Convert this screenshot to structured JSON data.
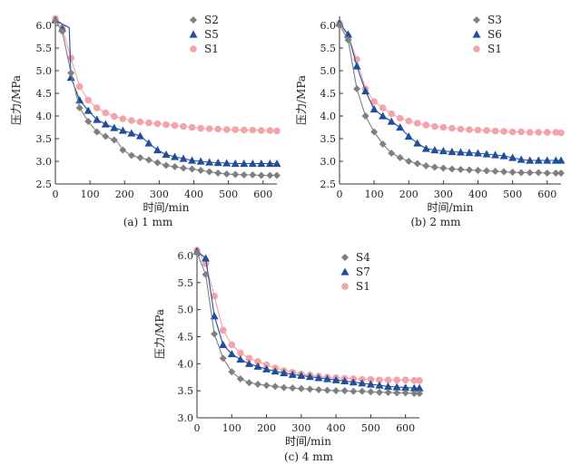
{
  "chart_data": [
    {
      "type": "line",
      "caption": "(a) 1 mm",
      "xlabel": "时间/min",
      "ylabel": "压力/MPa",
      "xlim": [
        0,
        640
      ],
      "ylim": [
        2.5,
        6.2
      ],
      "xticks": [
        0,
        100,
        200,
        300,
        400,
        500,
        600
      ],
      "yticks": [
        2.5,
        3.0,
        3.5,
        4.0,
        4.5,
        5.0,
        5.5,
        6.0
      ],
      "legend_position": "top-right",
      "series": [
        {
          "name": "S2",
          "marker": "diamond",
          "color": "#7f7f7f",
          "x": [
            0,
            20,
            45,
            70,
            95,
            120,
            145,
            170,
            195,
            220,
            245,
            270,
            295,
            320,
            345,
            370,
            395,
            420,
            445,
            470,
            495,
            520,
            545,
            570,
            595,
            620,
            640
          ],
          "y": [
            6.1,
            5.87,
            4.95,
            4.18,
            3.88,
            3.65,
            3.55,
            3.47,
            3.25,
            3.13,
            3.08,
            3.03,
            2.97,
            2.91,
            2.88,
            2.85,
            2.83,
            2.8,
            2.77,
            2.74,
            2.72,
            2.71,
            2.7,
            2.7,
            2.69,
            2.69,
            2.69
          ],
          "line": {
            "x": [
              0,
              20,
              45,
              70,
              95,
              120,
              145,
              170,
              180,
              195,
              220,
              245,
              270,
              295,
              320,
              345,
              370,
              395,
              420,
              445,
              470,
              495,
              520,
              545,
              570,
              595,
              620,
              640
            ],
            "y": [
              6.1,
              5.87,
              4.95,
              4.18,
              3.88,
              3.65,
              3.55,
              3.47,
              3.42,
              3.25,
              3.13,
              3.08,
              3.03,
              2.97,
              2.91,
              2.88,
              2.85,
              2.83,
              2.8,
              2.77,
              2.74,
              2.72,
              2.71,
              2.7,
              2.7,
              2.69,
              2.69,
              2.69
            ]
          }
        },
        {
          "name": "S5",
          "marker": "triangle",
          "color": "#1f4e9c",
          "x": [
            0,
            20,
            45,
            70,
            95,
            120,
            145,
            170,
            195,
            220,
            245,
            270,
            295,
            320,
            345,
            370,
            395,
            420,
            445,
            470,
            495,
            520,
            545,
            570,
            595,
            620,
            640
          ],
          "y": [
            6.12,
            5.93,
            4.85,
            4.35,
            4.12,
            3.92,
            3.82,
            3.74,
            3.68,
            3.62,
            3.56,
            3.4,
            3.25,
            3.15,
            3.1,
            3.06,
            3.02,
            3.0,
            2.98,
            2.97,
            2.96,
            2.95,
            2.95,
            2.95,
            2.95,
            2.95,
            2.95
          ],
          "line": {
            "x": [
              0,
              15,
              40,
              45,
              70,
              95,
              120,
              145,
              170,
              195,
              220,
              245,
              270,
              295,
              320,
              345,
              370,
              395,
              420,
              445,
              470,
              495,
              520,
              545,
              570,
              595,
              620,
              640
            ],
            "y": [
              6.12,
              6.05,
              5.95,
              4.85,
              4.35,
              4.12,
              3.92,
              3.82,
              3.74,
              3.68,
              3.62,
              3.56,
              3.4,
              3.25,
              3.15,
              3.1,
              3.06,
              3.02,
              3.0,
              2.98,
              2.97,
              2.96,
              2.95,
              2.95,
              2.95,
              2.95,
              2.95,
              2.95
            ]
          }
        },
        {
          "name": "S1",
          "marker": "circle",
          "color": "#f4a3a8",
          "x": [
            0,
            20,
            45,
            70,
            95,
            120,
            145,
            170,
            195,
            220,
            245,
            270,
            295,
            320,
            345,
            370,
            395,
            420,
            445,
            470,
            495,
            520,
            545,
            570,
            595,
            620,
            640
          ],
          "y": [
            6.15,
            5.95,
            5.28,
            4.65,
            4.35,
            4.18,
            4.07,
            3.99,
            3.94,
            3.9,
            3.87,
            3.85,
            3.83,
            3.81,
            3.79,
            3.77,
            3.75,
            3.73,
            3.72,
            3.71,
            3.7,
            3.7,
            3.69,
            3.69,
            3.68,
            3.68,
            3.67
          ]
        }
      ]
    },
    {
      "type": "line",
      "caption": "(b) 2 mm",
      "xlabel": "时间/min",
      "ylabel": "压力/MPa",
      "xlim": [
        0,
        640
      ],
      "ylim": [
        2.5,
        6.2
      ],
      "xticks": [
        0,
        100,
        200,
        300,
        400,
        500,
        600
      ],
      "yticks": [
        2.5,
        3.0,
        3.5,
        4.0,
        4.5,
        5.0,
        5.5,
        6.0
      ],
      "legend_position": "top-right",
      "series": [
        {
          "name": "S3",
          "marker": "diamond",
          "color": "#7f7f7f",
          "x": [
            0,
            25,
            50,
            75,
            100,
            125,
            150,
            175,
            200,
            225,
            250,
            275,
            300,
            325,
            350,
            375,
            400,
            425,
            450,
            475,
            500,
            525,
            550,
            575,
            600,
            625,
            640
          ],
          "y": [
            6.0,
            5.68,
            4.6,
            4.0,
            3.65,
            3.38,
            3.18,
            3.08,
            3.0,
            2.95,
            2.9,
            2.87,
            2.85,
            2.83,
            2.82,
            2.81,
            2.8,
            2.79,
            2.78,
            2.77,
            2.76,
            2.75,
            2.75,
            2.75,
            2.74,
            2.74,
            2.74
          ]
        },
        {
          "name": "S6",
          "marker": "triangle",
          "color": "#1f4e9c",
          "x": [
            0,
            25,
            50,
            75,
            100,
            125,
            150,
            175,
            200,
            225,
            250,
            275,
            300,
            325,
            350,
            375,
            400,
            425,
            450,
            475,
            500,
            525,
            550,
            575,
            600,
            625,
            640
          ],
          "y": [
            6.05,
            5.8,
            5.1,
            4.55,
            4.15,
            4.0,
            3.88,
            3.75,
            3.55,
            3.4,
            3.28,
            3.25,
            3.23,
            3.21,
            3.2,
            3.19,
            3.18,
            3.16,
            3.14,
            3.12,
            3.08,
            3.04,
            3.02,
            3.02,
            3.02,
            3.02,
            3.02
          ]
        },
        {
          "name": "S1",
          "marker": "circle",
          "color": "#f4a3a8",
          "x": [
            0,
            25,
            50,
            75,
            100,
            125,
            150,
            175,
            200,
            225,
            250,
            275,
            300,
            325,
            350,
            375,
            400,
            425,
            450,
            475,
            500,
            525,
            550,
            575,
            600,
            625,
            640
          ],
          "y": [
            6.05,
            5.75,
            5.25,
            4.6,
            4.32,
            4.18,
            4.05,
            3.95,
            3.89,
            3.84,
            3.8,
            3.77,
            3.75,
            3.73,
            3.71,
            3.7,
            3.69,
            3.68,
            3.67,
            3.66,
            3.65,
            3.65,
            3.64,
            3.64,
            3.64,
            3.64,
            3.63
          ]
        }
      ]
    },
    {
      "type": "line",
      "caption": "(c) 4 mm",
      "xlabel": "时间/min",
      "ylabel": "压力/MPa",
      "xlim": [
        0,
        640
      ],
      "ylim": [
        3.0,
        6.1
      ],
      "xticks": [
        0,
        100,
        200,
        300,
        400,
        500,
        600
      ],
      "yticks": [
        3.0,
        3.5,
        4.0,
        4.5,
        5.0,
        5.5,
        6.0
      ],
      "legend_position": "top-right",
      "series": [
        {
          "name": "S4",
          "marker": "diamond",
          "color": "#7f7f7f",
          "x": [
            0,
            25,
            50,
            75,
            100,
            125,
            150,
            175,
            200,
            225,
            250,
            275,
            300,
            325,
            350,
            375,
            400,
            425,
            450,
            475,
            500,
            525,
            550,
            575,
            600,
            625,
            640
          ],
          "y": [
            6.05,
            5.65,
            4.55,
            4.1,
            3.85,
            3.72,
            3.65,
            3.62,
            3.6,
            3.58,
            3.56,
            3.55,
            3.54,
            3.53,
            3.52,
            3.51,
            3.5,
            3.5,
            3.49,
            3.49,
            3.48,
            3.47,
            3.47,
            3.46,
            3.46,
            3.45,
            3.45
          ]
        },
        {
          "name": "S7",
          "marker": "triangle",
          "color": "#1f4e9c",
          "x": [
            0,
            25,
            50,
            75,
            100,
            125,
            150,
            175,
            200,
            225,
            250,
            275,
            300,
            325,
            350,
            375,
            400,
            425,
            450,
            475,
            500,
            525,
            550,
            575,
            600,
            625,
            640
          ],
          "y": [
            6.08,
            5.95,
            4.88,
            4.35,
            4.18,
            4.08,
            4.0,
            3.95,
            3.9,
            3.86,
            3.83,
            3.8,
            3.78,
            3.76,
            3.74,
            3.72,
            3.7,
            3.68,
            3.66,
            3.64,
            3.62,
            3.6,
            3.58,
            3.57,
            3.56,
            3.55,
            3.55
          ]
        },
        {
          "name": "S1",
          "marker": "circle",
          "color": "#f4a3a8",
          "x": [
            0,
            25,
            50,
            75,
            100,
            125,
            150,
            175,
            200,
            225,
            250,
            275,
            300,
            325,
            350,
            375,
            400,
            425,
            450,
            475,
            500,
            525,
            550,
            575,
            600,
            625,
            640
          ],
          "y": [
            6.1,
            5.85,
            5.25,
            4.62,
            4.35,
            4.2,
            4.1,
            4.04,
            3.98,
            3.92,
            3.87,
            3.84,
            3.81,
            3.79,
            3.77,
            3.75,
            3.74,
            3.73,
            3.72,
            3.71,
            3.71,
            3.7,
            3.7,
            3.7,
            3.7,
            3.69,
            3.69
          ]
        }
      ]
    }
  ]
}
